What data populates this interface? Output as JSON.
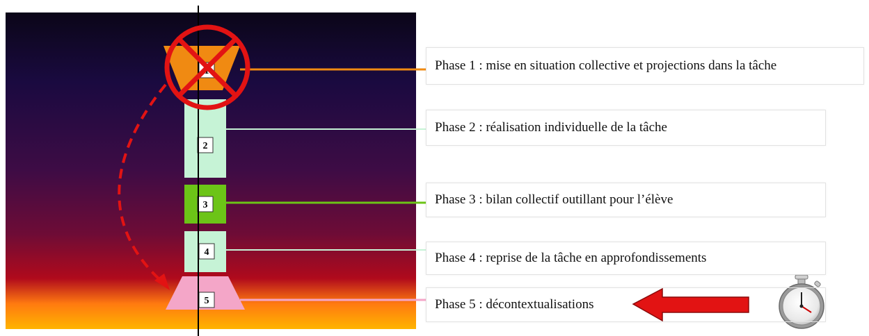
{
  "phases": [
    {
      "number": "1",
      "label": "Phase 1 : mise en situation collective et projections dans la tâche",
      "color": "#f08a12"
    },
    {
      "number": "2",
      "label": "Phase 2 : réalisation individuelle de la tâche",
      "color": "#c6f3d6"
    },
    {
      "number": "3",
      "label": "Phase 3 : bilan collectif outillant pour l’élève",
      "color": "#6cc417"
    },
    {
      "number": "4",
      "label": "Phase 4 : reprise de la tâche en approfondissements",
      "color": "#c6f3d6"
    },
    {
      "number": "5",
      "label": "Phase 5 : décontextualisations",
      "color": "#f4a6c8"
    }
  ],
  "colors": {
    "background_top": "#0b0618",
    "background_mid": "#5a0d3a",
    "background_low": "#c00d17",
    "background_bottom": "#ffb000",
    "cross_mark": "#e21313",
    "arrow": "#e21313",
    "dashed_arrow": "#e21313"
  },
  "icons": {
    "cross": "prohibition-circle-icon",
    "arrow": "red-left-arrow-icon",
    "timer": "stopwatch-icon"
  }
}
